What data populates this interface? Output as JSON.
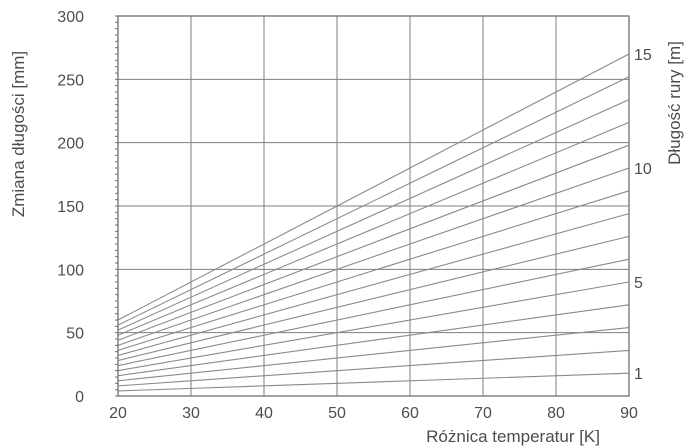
{
  "chart_data": {
    "type": "line",
    "xlabel": "Różnica temperatur [K]",
    "ylabel": "Zmiana długości [mm]",
    "y2label": "Długość rury [m]",
    "xlim": [
      20,
      90
    ],
    "ylim": [
      0,
      300
    ],
    "x_ticks": [
      "20",
      "30",
      "40",
      "50",
      "60",
      "70",
      "80",
      "90"
    ],
    "y_ticks": [
      "0",
      "50",
      "100",
      "150",
      "200",
      "250",
      "300"
    ],
    "y2_ticks": [
      {
        "label": "1",
        "pipe_length_m": 1
      },
      {
        "label": "5",
        "pipe_length_m": 5
      },
      {
        "label": "10",
        "pipe_length_m": 10
      },
      {
        "label": "15",
        "pipe_length_m": 15
      }
    ],
    "grid": true,
    "series": [
      {
        "pipe_length_m": 1,
        "x": [
          20,
          90
        ],
        "y": [
          4,
          18
        ]
      },
      {
        "pipe_length_m": 2,
        "x": [
          20,
          90
        ],
        "y": [
          8,
          36
        ]
      },
      {
        "pipe_length_m": 3,
        "x": [
          20,
          90
        ],
        "y": [
          12,
          54
        ]
      },
      {
        "pipe_length_m": 4,
        "x": [
          20,
          90
        ],
        "y": [
          16,
          72
        ]
      },
      {
        "pipe_length_m": 5,
        "x": [
          20,
          90
        ],
        "y": [
          20,
          90
        ]
      },
      {
        "pipe_length_m": 6,
        "x": [
          20,
          90
        ],
        "y": [
          24,
          108
        ]
      },
      {
        "pipe_length_m": 7,
        "x": [
          20,
          90
        ],
        "y": [
          28,
          126
        ]
      },
      {
        "pipe_length_m": 8,
        "x": [
          20,
          90
        ],
        "y": [
          32,
          144
        ]
      },
      {
        "pipe_length_m": 9,
        "x": [
          20,
          90
        ],
        "y": [
          36,
          162
        ]
      },
      {
        "pipe_length_m": 10,
        "x": [
          20,
          90
        ],
        "y": [
          40,
          180
        ]
      },
      {
        "pipe_length_m": 11,
        "x": [
          20,
          90
        ],
        "y": [
          44,
          198
        ]
      },
      {
        "pipe_length_m": 12,
        "x": [
          20,
          90
        ],
        "y": [
          48,
          216
        ]
      },
      {
        "pipe_length_m": 13,
        "x": [
          20,
          90
        ],
        "y": [
          52,
          234
        ]
      },
      {
        "pipe_length_m": 14,
        "x": [
          20,
          90
        ],
        "y": [
          56,
          252
        ]
      },
      {
        "pipe_length_m": 15,
        "x": [
          20,
          90
        ],
        "y": [
          60,
          270
        ]
      }
    ],
    "colors": {
      "lines": "#8a8a8a",
      "grid": "#7f7f7f",
      "text": "#4d4d4d"
    }
  }
}
